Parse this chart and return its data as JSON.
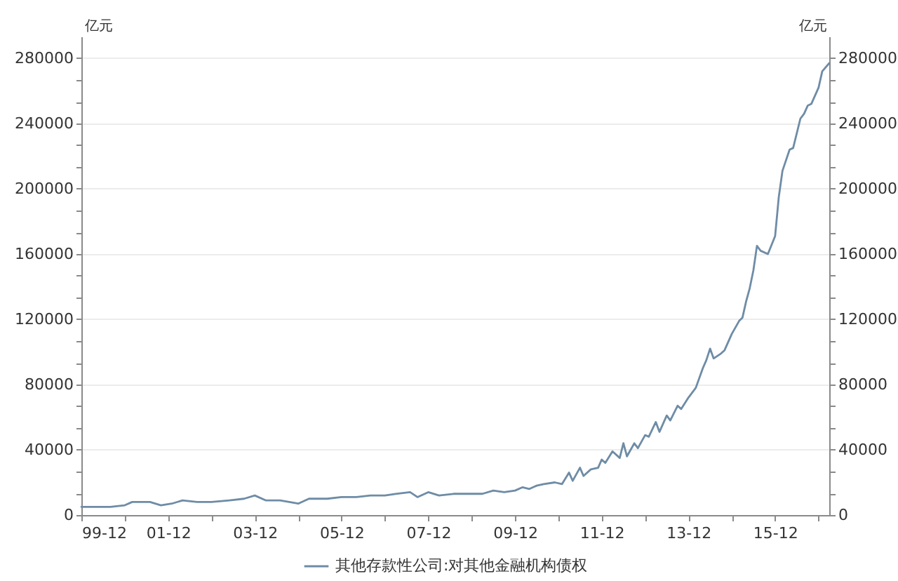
{
  "chart_data": {
    "type": "line",
    "ylabel": "亿元",
    "y2label": "亿元",
    "x": [
      "1999-12",
      "2000-04",
      "2000-08",
      "2000-12",
      "2001-02",
      "2001-04",
      "2001-07",
      "2001-10",
      "2002-01",
      "2002-04",
      "2002-08",
      "2002-12",
      "2003-05",
      "2003-09",
      "2003-12",
      "2004-03",
      "2004-07",
      "2004-12",
      "2005-03",
      "2005-08",
      "2005-12",
      "2006-04",
      "2006-08",
      "2006-12",
      "2007-03",
      "2007-07",
      "2007-09",
      "2007-12",
      "2008-03",
      "2008-07",
      "2008-12",
      "2009-03",
      "2009-06",
      "2009-09",
      "2009-12",
      "2010-02",
      "2010-04",
      "2010-06",
      "2010-08",
      "2010-11",
      "2011-01",
      "2011-03",
      "2011-04",
      "2011-06",
      "2011-07",
      "2011-09",
      "2011-11",
      "2011-12",
      "2012-01",
      "2012-03",
      "2012-05",
      "2012-06",
      "2012-07",
      "2012-09",
      "2012-10",
      "2012-12",
      "2013-01",
      "2013-03",
      "2013-04",
      "2013-06",
      "2013-07",
      "2013-09",
      "2013-10",
      "2013-12",
      "2014-02",
      "2014-04",
      "2014-05",
      "2014-06",
      "2014-07",
      "2014-09",
      "2014-10",
      "2014-12",
      "2015-02",
      "2015-03",
      "2015-04",
      "2015-05",
      "2015-06",
      "2015-07",
      "2015-08",
      "2015-10",
      "2015-12",
      "2016-01",
      "2016-02",
      "2016-04",
      "2016-05",
      "2016-07",
      "2016-08",
      "2016-09",
      "2016-10",
      "2016-12",
      "2017-01",
      "2017-03"
    ],
    "series": [
      {
        "name": "其他存款性公司:对其他金融机构债权",
        "color": "#6e8ca6",
        "values": [
          5000,
          5000,
          5000,
          6000,
          8000,
          8000,
          8000,
          6000,
          7000,
          9000,
          8000,
          8000,
          9000,
          10000,
          12000,
          9000,
          9000,
          7000,
          10000,
          10000,
          11000,
          11000,
          12000,
          12000,
          13000,
          14000,
          11000,
          14000,
          12000,
          13000,
          13000,
          13000,
          15000,
          14000,
          15000,
          17000,
          16000,
          18000,
          19000,
          20000,
          19000,
          26000,
          21000,
          29000,
          24000,
          28000,
          29000,
          34000,
          32000,
          39000,
          35000,
          44000,
          36000,
          44000,
          41000,
          49000,
          48000,
          57000,
          51000,
          61000,
          58000,
          67000,
          65000,
          72000,
          78000,
          90000,
          95000,
          102000,
          96000,
          99000,
          101000,
          111000,
          119000,
          121000,
          131000,
          139000,
          150000,
          165000,
          162000,
          160000,
          171000,
          195000,
          211000,
          224000,
          225000,
          243000,
          246000,
          251000,
          252000,
          262000,
          272000,
          277000
        ]
      }
    ],
    "xlim": [
      "1999-12",
      "2017-03"
    ],
    "xticks": [
      {
        "value": "1999-12",
        "label": "99-12"
      },
      {
        "value": "2000-12",
        "label": null
      },
      {
        "value": "2001-12",
        "label": "01-12"
      },
      {
        "value": "2002-12",
        "label": null
      },
      {
        "value": "2003-12",
        "label": "03-12"
      },
      {
        "value": "2004-12",
        "label": null
      },
      {
        "value": "2005-12",
        "label": "05-12"
      },
      {
        "value": "2006-12",
        "label": null
      },
      {
        "value": "2007-12",
        "label": "07-12"
      },
      {
        "value": "2008-12",
        "label": null
      },
      {
        "value": "2009-12",
        "label": "09-12"
      },
      {
        "value": "2010-12",
        "label": null
      },
      {
        "value": "2011-12",
        "label": "11-12"
      },
      {
        "value": "2012-12",
        "label": null
      },
      {
        "value": "2013-12",
        "label": "13-12"
      },
      {
        "value": "2014-12",
        "label": null
      },
      {
        "value": "2015-12",
        "label": "15-12"
      },
      {
        "value": "2016-12",
        "label": null
      }
    ],
    "ylim": [
      0,
      293333
    ],
    "yticks": [
      0,
      {
        "value": 13333,
        "label": null
      },
      {
        "value": 26667,
        "label": null
      },
      40000,
      {
        "value": 53333,
        "label": null
      },
      {
        "value": 66667,
        "label": null
      },
      80000,
      {
        "value": 93333,
        "label": null
      },
      {
        "value": 106667,
        "label": null
      },
      120000,
      {
        "value": 133333,
        "label": null
      },
      {
        "value": 146667,
        "label": null
      },
      160000,
      {
        "value": 173333,
        "label": null
      },
      {
        "value": 186667,
        "label": null
      },
      200000,
      {
        "value": 213333,
        "label": null
      },
      {
        "value": 226667,
        "label": null
      },
      240000,
      {
        "value": 253333,
        "label": null
      },
      {
        "value": 266667,
        "label": null
      },
      280000
    ],
    "y2lim": [
      0,
      293333
    ],
    "y2ticks": [
      0,
      {
        "value": 13333,
        "label": null
      },
      {
        "value": 26667,
        "label": null
      },
      40000,
      {
        "value": 53333,
        "label": null
      },
      {
        "value": 66667,
        "label": null
      },
      80000,
      {
        "value": 93333,
        "label": null
      },
      {
        "value": 106667,
        "label": null
      },
      120000,
      {
        "value": 133333,
        "label": null
      },
      {
        "value": 146667,
        "label": null
      },
      160000,
      {
        "value": 173333,
        "label": null
      },
      {
        "value": 186667,
        "label": null
      },
      200000,
      {
        "value": 213333,
        "label": null
      },
      {
        "value": 226667,
        "label": null
      },
      240000,
      {
        "value": 253333,
        "label": null
      },
      {
        "value": 266667,
        "label": null
      },
      280000
    ],
    "grid": "y",
    "legend": "bottom"
  }
}
